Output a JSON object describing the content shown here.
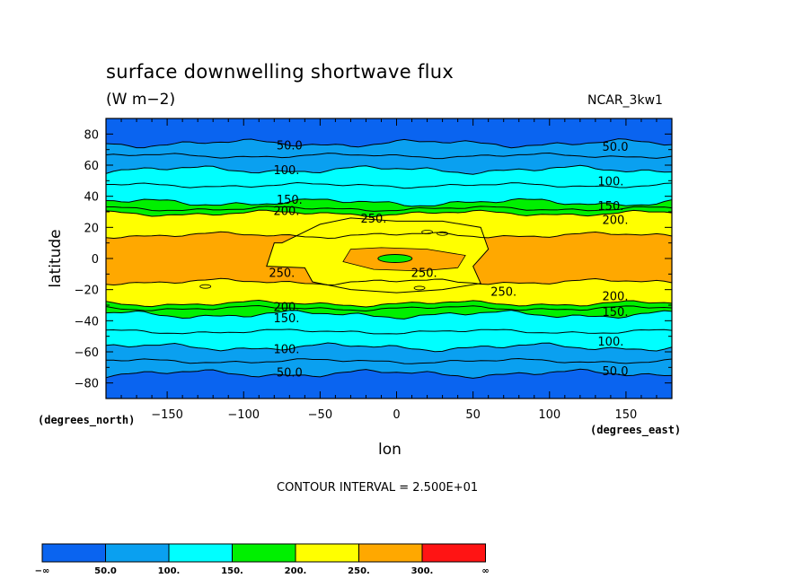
{
  "chart_data": {
    "type": "contour",
    "title": "surface downwelling shortwave flux",
    "units": "(W m−2)",
    "model": "NCAR_3kw1",
    "xlabel": "lon",
    "ylabel": "latitude",
    "x_units": "(degrees_east)",
    "y_units": "(degrees_north)",
    "contour_interval_text": "CONTOUR INTERVAL = 2.500E+01",
    "xlim": [
      -190,
      180
    ],
    "ylim": [
      -90,
      90
    ],
    "x_ticks": [
      -150,
      -100,
      -50,
      0,
      50,
      100,
      150
    ],
    "x_tick_labels": [
      "−150",
      "−100",
      "−50",
      "0",
      "50",
      "100",
      "150"
    ],
    "y_ticks": [
      80,
      60,
      40,
      20,
      0,
      -20,
      -40,
      -60,
      -80
    ],
    "y_tick_labels": [
      "80",
      "60",
      "40",
      "20",
      "0",
      "−20",
      "−40",
      "−60",
      "−80"
    ],
    "contour_labels": [
      {
        "text": "50.0",
        "lon": -70,
        "lat": 73
      },
      {
        "text": "50.0",
        "lon": 143,
        "lat": 72
      },
      {
        "text": "100.",
        "lon": -72,
        "lat": 57
      },
      {
        "text": "100.",
        "lon": 140,
        "lat": 50
      },
      {
        "text": "150.",
        "lon": -70,
        "lat": 38
      },
      {
        "text": "150.",
        "lon": 140,
        "lat": 34
      },
      {
        "text": "200.",
        "lon": -72,
        "lat": 31
      },
      {
        "text": "200.",
        "lon": 143,
        "lat": 25
      },
      {
        "text": "250.",
        "lon": -15,
        "lat": 26
      },
      {
        "text": "250.",
        "lon": -75,
        "lat": -9
      },
      {
        "text": "250.",
        "lon": 18,
        "lat": -9
      },
      {
        "text": "250.",
        "lon": 70,
        "lat": -21
      },
      {
        "text": "200.",
        "lon": 143,
        "lat": -24
      },
      {
        "text": "200.",
        "lon": -72,
        "lat": -31
      },
      {
        "text": "150.",
        "lon": 143,
        "lat": -34
      },
      {
        "text": "150.",
        "lon": -72,
        "lat": -38
      },
      {
        "text": "100.",
        "lon": 140,
        "lat": -53
      },
      {
        "text": "100.",
        "lon": -72,
        "lat": -58
      },
      {
        "text": "50.0",
        "lon": -70,
        "lat": -73
      },
      {
        "text": "50.0",
        "lon": 143,
        "lat": -72
      }
    ],
    "bands": [
      {
        "range": "-∞ to 50",
        "north": [
          90,
          74
        ],
        "south": [
          -74,
          -90
        ]
      },
      {
        "range": "50 to 100",
        "north": [
          74,
          57
        ],
        "south": [
          -57,
          -74
        ]
      },
      {
        "range": "100 to 150",
        "north": [
          57,
          36
        ],
        "south": [
          -36,
          -57
        ]
      },
      {
        "range": "150 to 200",
        "north": [
          36,
          29
        ],
        "south": [
          -29,
          -36
        ]
      },
      {
        "range": "200 to 250",
        "north": [
          29,
          15
        ],
        "south": [
          -15,
          -29
        ]
      },
      {
        "range": "250 to 300",
        "north": [
          15,
          0
        ],
        "south": [
          0,
          -15
        ]
      }
    ],
    "colorbar": {
      "levels": [
        "−∞",
        "50.0",
        "100.",
        "150.",
        "200.",
        "250.",
        "300.",
        "∞"
      ],
      "colors": [
        "#0a64f0",
        "#0aa0f0",
        "#00ffff",
        "#00f000",
        "#ffff00",
        "#ffa800",
        "#ff1414"
      ]
    }
  }
}
